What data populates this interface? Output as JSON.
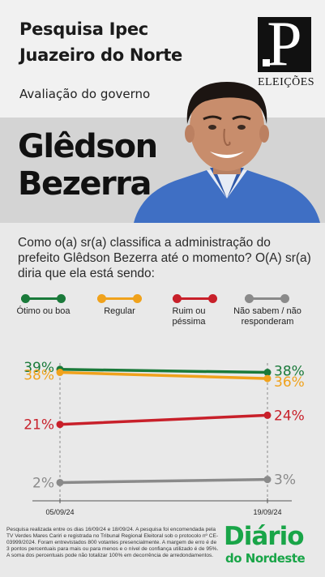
{
  "header": {
    "title_line1": "Pesquisa Ipec",
    "title_line2": "Juazeiro do Norte",
    "subtitle": "Avaliação do governo"
  },
  "logo": {
    "letter": "P",
    "word": "ELEIÇÕES"
  },
  "candidate": {
    "first_name": "Glêdson",
    "last_name": "Bezerra"
  },
  "question": "Como o(a) sr(a) classifica a administração do prefeito Glêdson Bezerra  até o momento? O(A) sr(a) diria que ela está sendo:",
  "legend": [
    {
      "label": "Ótimo ou boa",
      "color": "#1a7a3a"
    },
    {
      "label": "Regular",
      "color": "#f0a21c"
    },
    {
      "label": "Ruim ou péssima",
      "color": "#c8202a"
    },
    {
      "label": "Não sabem / não responderam",
      "color": "#8a8a8a"
    }
  ],
  "chart_data": {
    "type": "line",
    "x": [
      "05/09/24",
      "19/09/24"
    ],
    "series": [
      {
        "name": "Ótimo ou boa",
        "values": [
          39,
          38
        ],
        "labels": [
          "39%",
          "38%"
        ],
        "color": "#1a7a3a"
      },
      {
        "name": "Regular",
        "values": [
          38,
          36
        ],
        "labels": [
          "38%",
          "36%"
        ],
        "color": "#f0a21c"
      },
      {
        "name": "Ruim ou péssima",
        "values": [
          21,
          24
        ],
        "labels": [
          "21%",
          "24%"
        ],
        "color": "#c8202a"
      },
      {
        "name": "Não sabem / não responderam",
        "values": [
          2,
          3
        ],
        "labels": [
          "2%",
          "3%"
        ],
        "color": "#8a8a8a"
      }
    ],
    "grid": false
  },
  "footnote": "Pesquisa realizada entre os dias 16/09/24 e 18/09/24. A pesquisa foi encomendada pela TV Verdes Mares Cariri e registrada no Tribunal Regional Eleitoral  sob o protocolo nº CE-03999/2024. Foram entrevistados 800 votantes presencialmente. A margem de erro é de 3 pontos percentuais para mais ou para menos e o nível de confiança utilizado é de 95%. A soma dos percentuais pode não totalizar 100% em decorrência de arredondamentos.",
  "brand": {
    "main": "Diário",
    "sub": "do Nordeste",
    "color": "#19a548"
  }
}
